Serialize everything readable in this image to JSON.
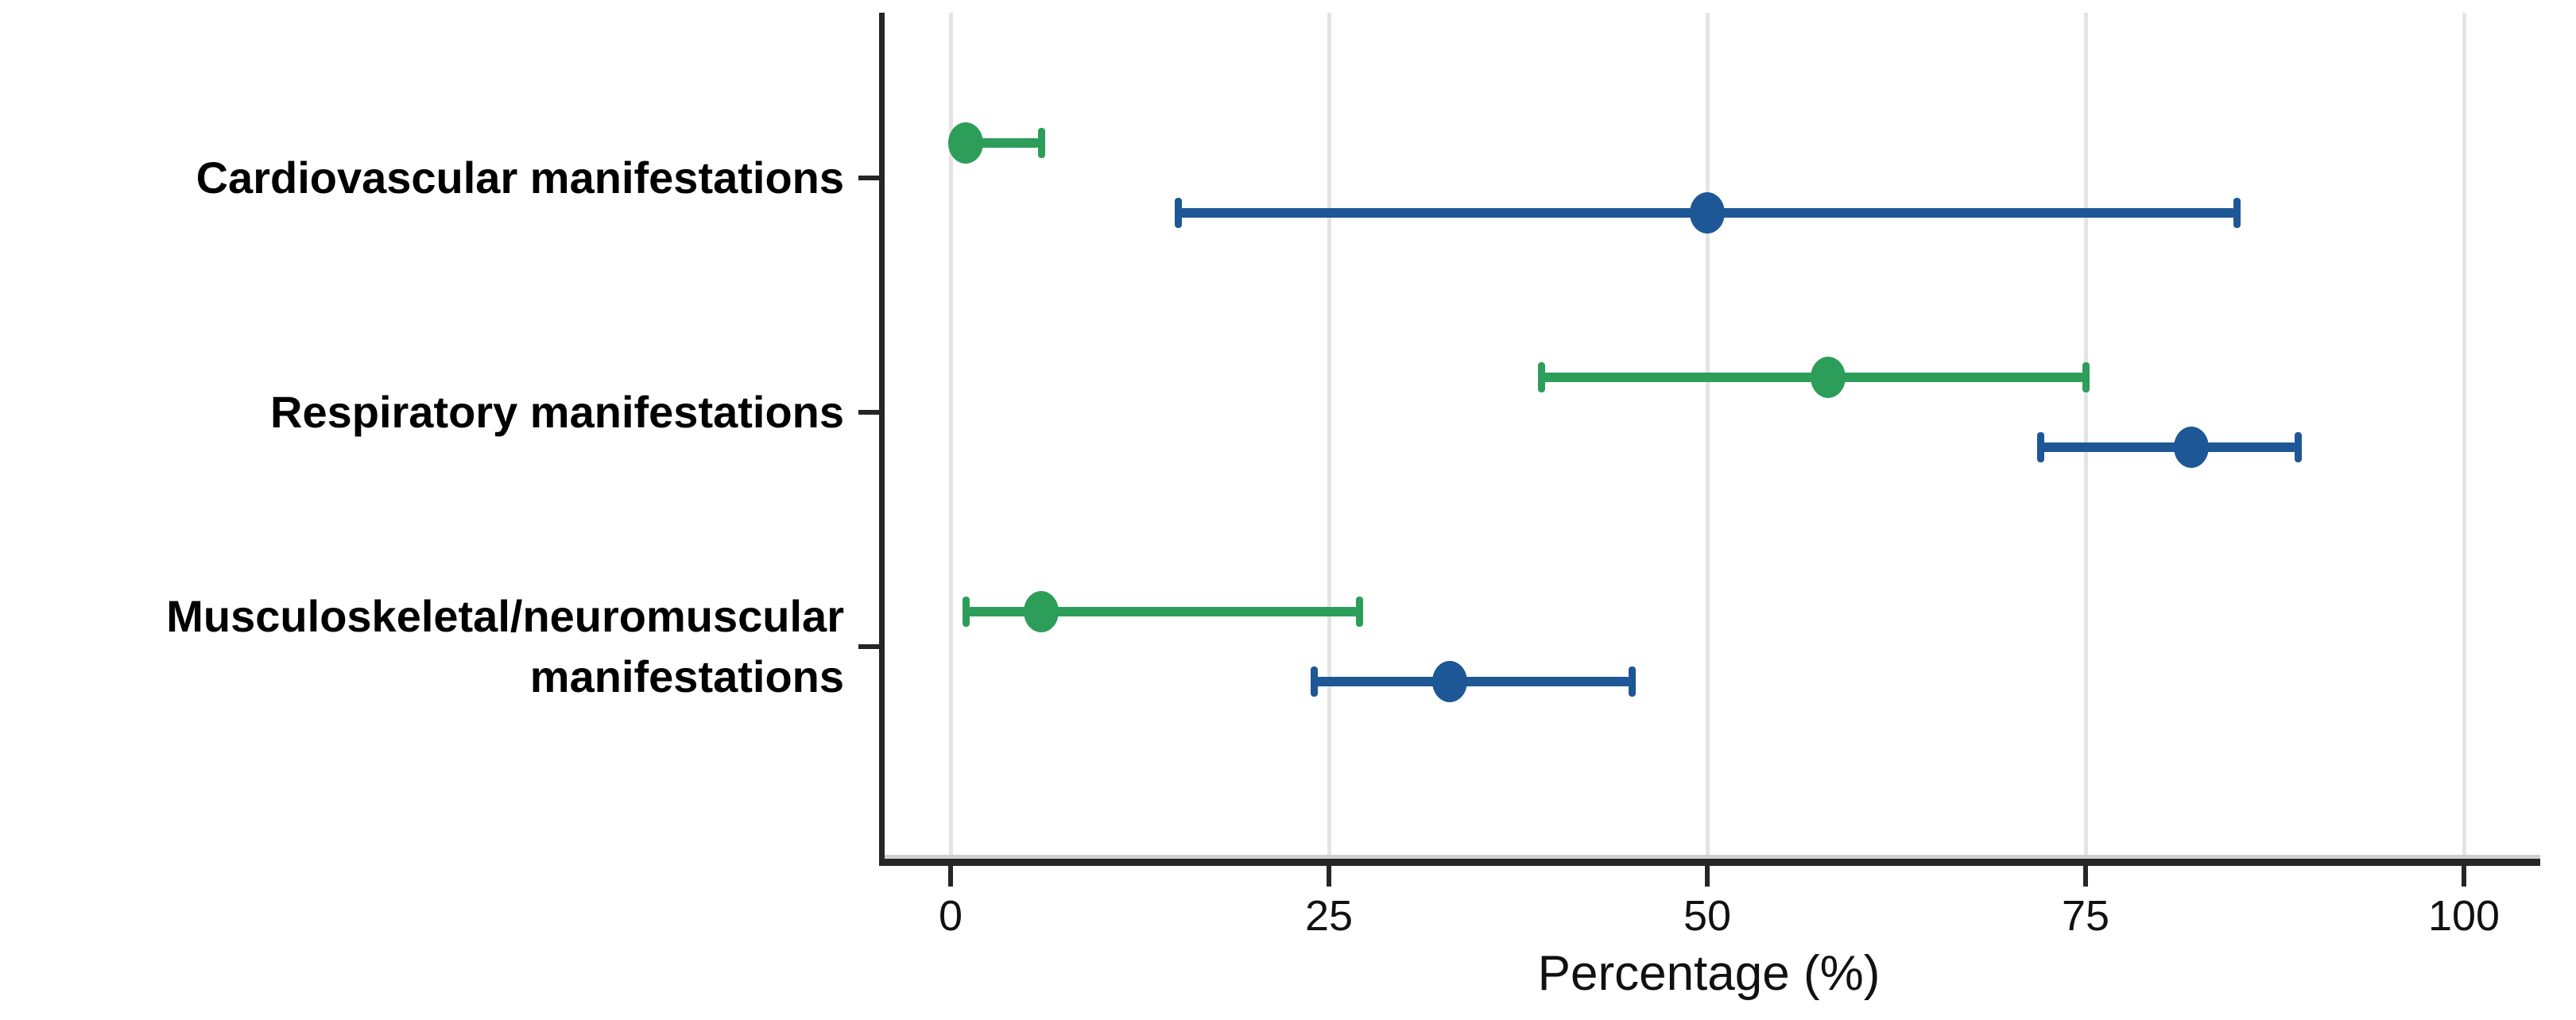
{
  "chart_data": {
    "type": "scatter",
    "subtype": "horizontal-dot-plot-with-error-bars",
    "title": "",
    "xlabel": "Percentage (%)",
    "xlim": [
      0,
      100
    ],
    "x_ticks": [
      0,
      25,
      50,
      75,
      100
    ],
    "grid": "vertical-light-gray",
    "legend": "none",
    "categories": [
      {
        "label": "Cardiovascular manifestations",
        "lines": [
          "Cardiovascular manifestations"
        ]
      },
      {
        "label": "Respiratory manifestations",
        "lines": [
          "Respiratory manifestations"
        ]
      },
      {
        "label": "Musculoskeletal/neuromuscular manifestations",
        "lines": [
          "Musculoskeletal/neuromuscular",
          "manifestations"
        ]
      }
    ],
    "series": [
      {
        "name": "green-series",
        "color": "#2d9e5a",
        "points": [
          {
            "category": "Cardiovascular manifestations",
            "value": 1,
            "ci_low": 0.3,
            "ci_high": 6
          },
          {
            "category": "Respiratory manifestations",
            "value": 58,
            "ci_low": 39,
            "ci_high": 75
          },
          {
            "category": "Musculoskeletal/neuromuscular manifestations",
            "value": 6,
            "ci_low": 1,
            "ci_high": 27
          }
        ]
      },
      {
        "name": "blue-series",
        "color": "#1d5796",
        "points": [
          {
            "category": "Cardiovascular manifestations",
            "value": 50,
            "ci_low": 15,
            "ci_high": 85
          },
          {
            "category": "Respiratory manifestations",
            "value": 82,
            "ci_low": 72,
            "ci_high": 89
          },
          {
            "category": "Musculoskeletal/neuromuscular manifestations",
            "value": 33,
            "ci_low": 24,
            "ci_high": 45
          }
        ]
      }
    ],
    "colors": {
      "grid": "#e4e4e4",
      "axis": "#262626",
      "text": "#000000"
    }
  }
}
